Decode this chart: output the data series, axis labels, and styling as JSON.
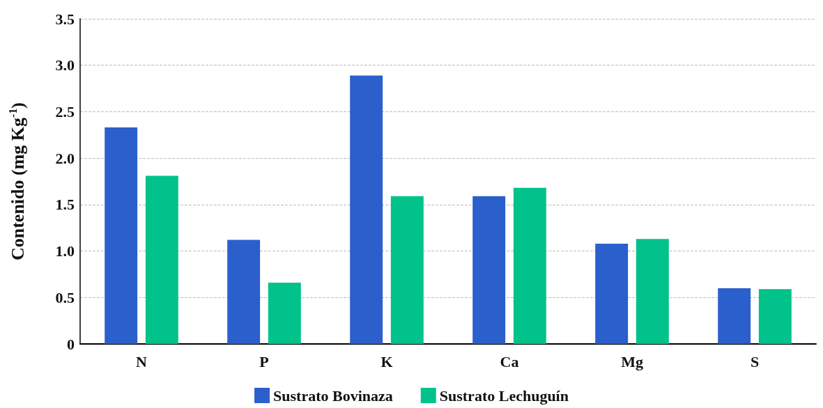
{
  "chart_data": {
    "type": "bar",
    "ylabel": "Contenido (mg Kg$^{-1}$)",
    "categories": [
      "N",
      "P",
      "K",
      "Ca",
      "Mg",
      "S"
    ],
    "series": [
      {
        "name": "Sustrato Bovinaza",
        "color": "#2b5fcc",
        "values": [
          2.33,
          1.12,
          2.89,
          1.59,
          1.08,
          0.6
        ]
      },
      {
        "name": "Sustrato Lechuguín",
        "color": "#00c28a",
        "values": [
          1.81,
          0.66,
          1.59,
          1.68,
          1.13,
          0.59
        ]
      }
    ],
    "ylim": [
      0,
      3.5
    ],
    "yticks": [
      0,
      0.5,
      {
        "value": 1,
        "label": "1.0"
      },
      1.5,
      {
        "value": 2,
        "label": "2.0"
      },
      2.5,
      {
        "value": 3,
        "label": "3.0"
      },
      3.5
    ],
    "grid": "y",
    "legend": "bottom"
  }
}
